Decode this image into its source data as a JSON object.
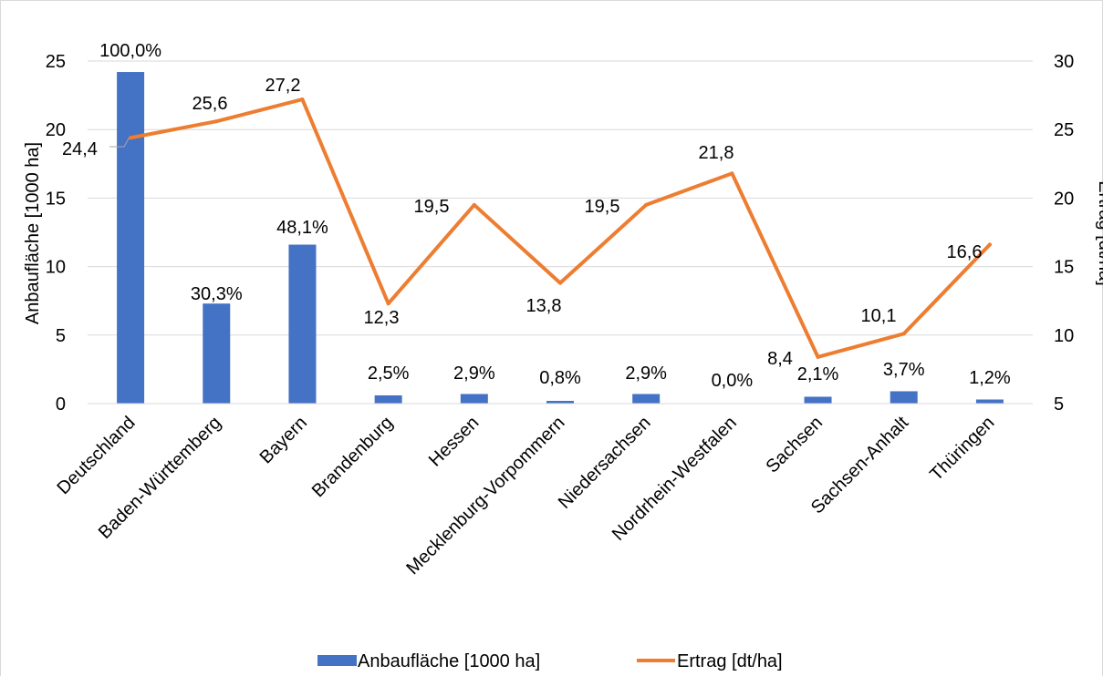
{
  "chart_data": {
    "type": "bar+line",
    "categories": [
      "Deutschland",
      "Baden-Württemberg",
      "Bayern",
      "Brandenburg",
      "Hessen",
      "Mecklenburg-Vorpommern",
      "Niedersachsen",
      "Nordrhein-Westfalen",
      "Sachsen",
      "Sachsen-Anhalt",
      "Thüringen"
    ],
    "series": [
      {
        "name": "Anbaufläche [1000 ha]",
        "type": "bar",
        "axis": "left",
        "color": "#4472C4",
        "values": [
          24.2,
          7.3,
          11.6,
          0.6,
          0.7,
          0.2,
          0.7,
          0.0,
          0.5,
          0.9,
          0.3
        ],
        "labels": [
          "100,0%",
          "30,3%",
          "48,1%",
          "2,5%",
          "2,9%",
          "0,8%",
          "2,9%",
          "0,0%",
          "2,1%",
          "3,7%",
          "1,2%"
        ]
      },
      {
        "name": "Ertrag [dt/ha]",
        "type": "line",
        "axis": "right",
        "color": "#ED7D31",
        "values": [
          24.4,
          25.6,
          27.2,
          12.3,
          19.5,
          13.8,
          19.5,
          21.8,
          8.4,
          10.1,
          16.6
        ],
        "labels": [
          "24,4",
          "25,6",
          "27,2",
          "12,3",
          "19,5",
          "13,8",
          "19,5",
          "21,8",
          "8,4",
          "10,1",
          "16,6"
        ]
      }
    ],
    "ylabel": "Anbaufläche [1000 ha]",
    "y2label": "Ertrag [dt/ha]",
    "ylim": [
      0,
      25
    ],
    "yticks": [
      "0",
      "5",
      "10",
      "15",
      "20",
      "25"
    ],
    "y2lim": [
      5,
      30
    ],
    "y2ticks": [
      "5",
      "10",
      "15",
      "20",
      "25",
      "30"
    ],
    "grid": true,
    "legend_position": "bottom"
  }
}
